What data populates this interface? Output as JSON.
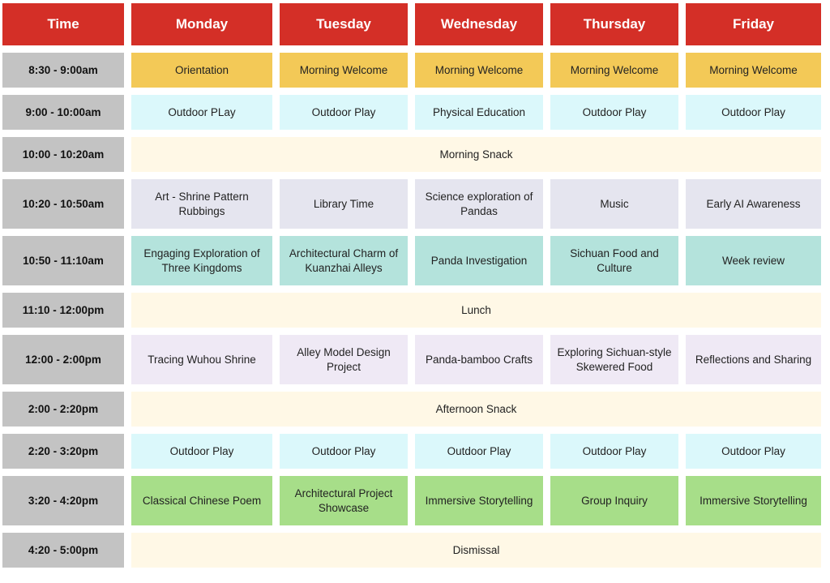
{
  "header": {
    "time": "Time",
    "days": [
      "Monday",
      "Tuesday",
      "Wednesday",
      "Thursday",
      "Friday"
    ]
  },
  "rows": [
    {
      "time": "8:30 - 9:00am",
      "cells": [
        "Orientation",
        "Morning Welcome",
        "Morning Welcome",
        "Morning Welcome",
        "Morning Welcome"
      ]
    },
    {
      "time": "9:00 - 10:00am",
      "cells": [
        "Outdoor PLay",
        "Outdoor Play",
        "Physical Education",
        "Outdoor Play",
        "Outdoor Play"
      ]
    },
    {
      "time": "10:00 - 10:20am",
      "full": "Morning Snack"
    },
    {
      "time": "10:20 - 10:50am",
      "cells": [
        "Art - Shrine Pattern Rubbings",
        "Library Time",
        "Science exploration of Pandas",
        "Music",
        "Early AI Awareness"
      ]
    },
    {
      "time": "10:50 - 11:10am",
      "cells": [
        "Engaging Exploration of Three Kingdoms",
        "Architectural Charm of Kuanzhai Alleys",
        "Panda Investigation",
        "Sichuan Food and Culture",
        "Week review"
      ]
    },
    {
      "time": "11:10 - 12:00pm",
      "full": "Lunch"
    },
    {
      "time": "12:00 - 2:00pm",
      "cells": [
        "Tracing Wuhou Shrine",
        "Alley Model Design Project",
        "Panda-bamboo Crafts",
        "Exploring Sichuan-style Skewered Food",
        "Reflections and Sharing"
      ]
    },
    {
      "time": "2:00 - 2:20pm",
      "full": "Afternoon Snack"
    },
    {
      "time": "2:20 - 3:20pm",
      "cells": [
        "Outdoor Play",
        "Outdoor Play",
        "Outdoor Play",
        "Outdoor Play",
        "Outdoor Play"
      ]
    },
    {
      "time": "3:20 - 4:20pm",
      "cells": [
        "Classical Chinese Poem",
        "Architectural Project Showcase",
        "Immersive Storytelling",
        "Group Inquiry",
        "Immersive Storytelling"
      ]
    },
    {
      "time": "4:20 - 5:00pm",
      "full": "Dismissal"
    }
  ],
  "colors": {
    "header": "#d42f27",
    "time": "#c3c3c3",
    "full": "#fff8e6",
    "yellow": "#f3c957",
    "cyan": "#dbf8fb",
    "lavender": "#e5e5ef",
    "teal": "#b4e3dc",
    "purple": "#efe9f5",
    "green": "#a7de89"
  }
}
